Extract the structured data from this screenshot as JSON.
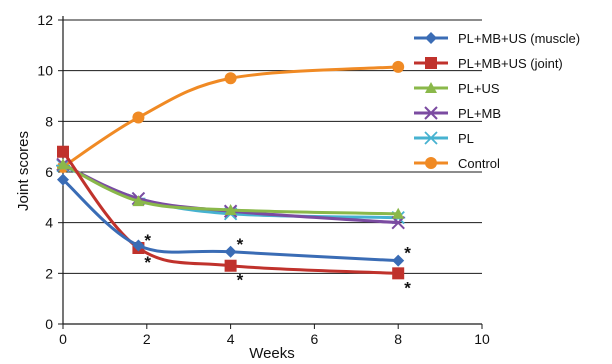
{
  "chart_data": {
    "type": "line",
    "title": "",
    "xlabel": "Weeks",
    "ylabel": "Joint scores",
    "xlim": [
      0,
      10
    ],
    "ylim": [
      0,
      12
    ],
    "xticks": [
      "0",
      "2",
      "4",
      "6",
      "8",
      "10"
    ],
    "yticks": [
      "0",
      "2",
      "4",
      "6",
      "8",
      "10",
      "12"
    ],
    "x": [
      0,
      1.8,
      4,
      8
    ],
    "grid": "horizontal",
    "legend_position": "right",
    "series": [
      {
        "name": "PL+MB+US (muscle)",
        "values": [
          5.7,
          3.1,
          2.85,
          2.5
        ],
        "color": "#3a6cb5",
        "marker": "diamond"
      },
      {
        "name": "PL+MB+US (joint)",
        "values": [
          6.8,
          3.0,
          2.3,
          2.0
        ],
        "color": "#c0322c",
        "marker": "square"
      },
      {
        "name": "PL+US",
        "values": [
          6.3,
          4.85,
          4.5,
          4.35
        ],
        "color": "#8ab84a",
        "marker": "triangle"
      },
      {
        "name": "PL+MB",
        "values": [
          6.3,
          4.95,
          4.45,
          4.0
        ],
        "color": "#7b4ba1",
        "marker": "x"
      },
      {
        "name": "PL",
        "values": [
          6.25,
          4.95,
          4.35,
          4.2
        ],
        "color": "#46b2d0",
        "marker": "star"
      },
      {
        "name": "Control",
        "values": [
          6.2,
          8.15,
          9.7,
          10.15
        ],
        "color": "#f08a24",
        "marker": "circle"
      }
    ],
    "annotations": [
      {
        "text": "*",
        "x": 1.8,
        "y": 3.0,
        "anchor": "above-right"
      },
      {
        "text": "*",
        "x": 1.8,
        "y": 3.0,
        "anchor": "below-right"
      },
      {
        "text": "*",
        "x": 4,
        "y": 2.85,
        "anchor": "above-right"
      },
      {
        "text": "*",
        "x": 4,
        "y": 2.3,
        "anchor": "below-right"
      },
      {
        "text": "*",
        "x": 8,
        "y": 2.5,
        "anchor": "above-right"
      },
      {
        "text": "*",
        "x": 8,
        "y": 2.0,
        "anchor": "below-right"
      }
    ]
  }
}
